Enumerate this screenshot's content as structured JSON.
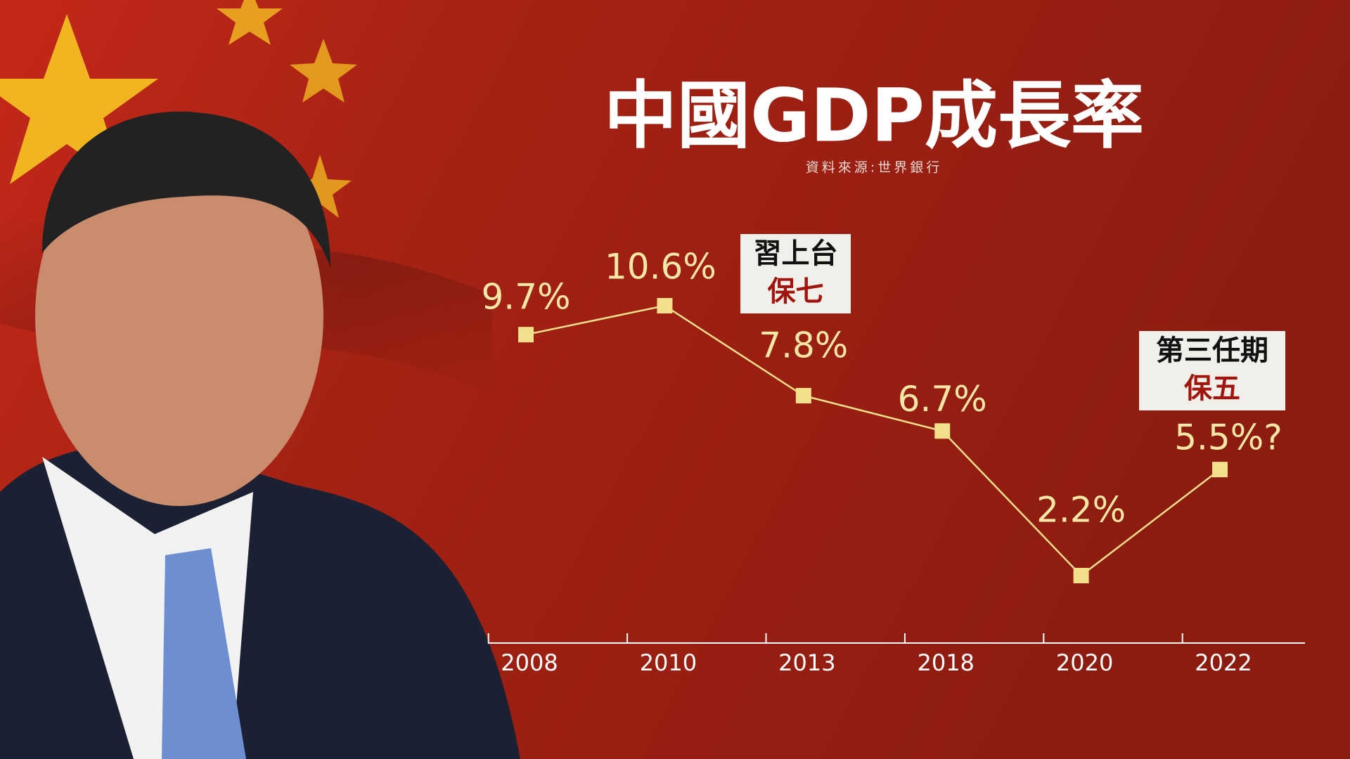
{
  "chart_data": {
    "type": "line",
    "title": "中國GDP成長率",
    "source": "資料來源:世界銀行",
    "categories": [
      "2008",
      "2010",
      "2013",
      "2018",
      "2020",
      "2022"
    ],
    "values": [
      9.7,
      10.6,
      7.8,
      6.7,
      2.2,
      5.5
    ],
    "value_labels": [
      "9.7%",
      "10.6%",
      "7.8%",
      "6.7%",
      "2.2%",
      "5.5%?"
    ],
    "color": "#f2e08c",
    "annotations": [
      [
        "習上台",
        "保七"
      ],
      [
        "第三任期",
        "保五"
      ]
    ]
  }
}
